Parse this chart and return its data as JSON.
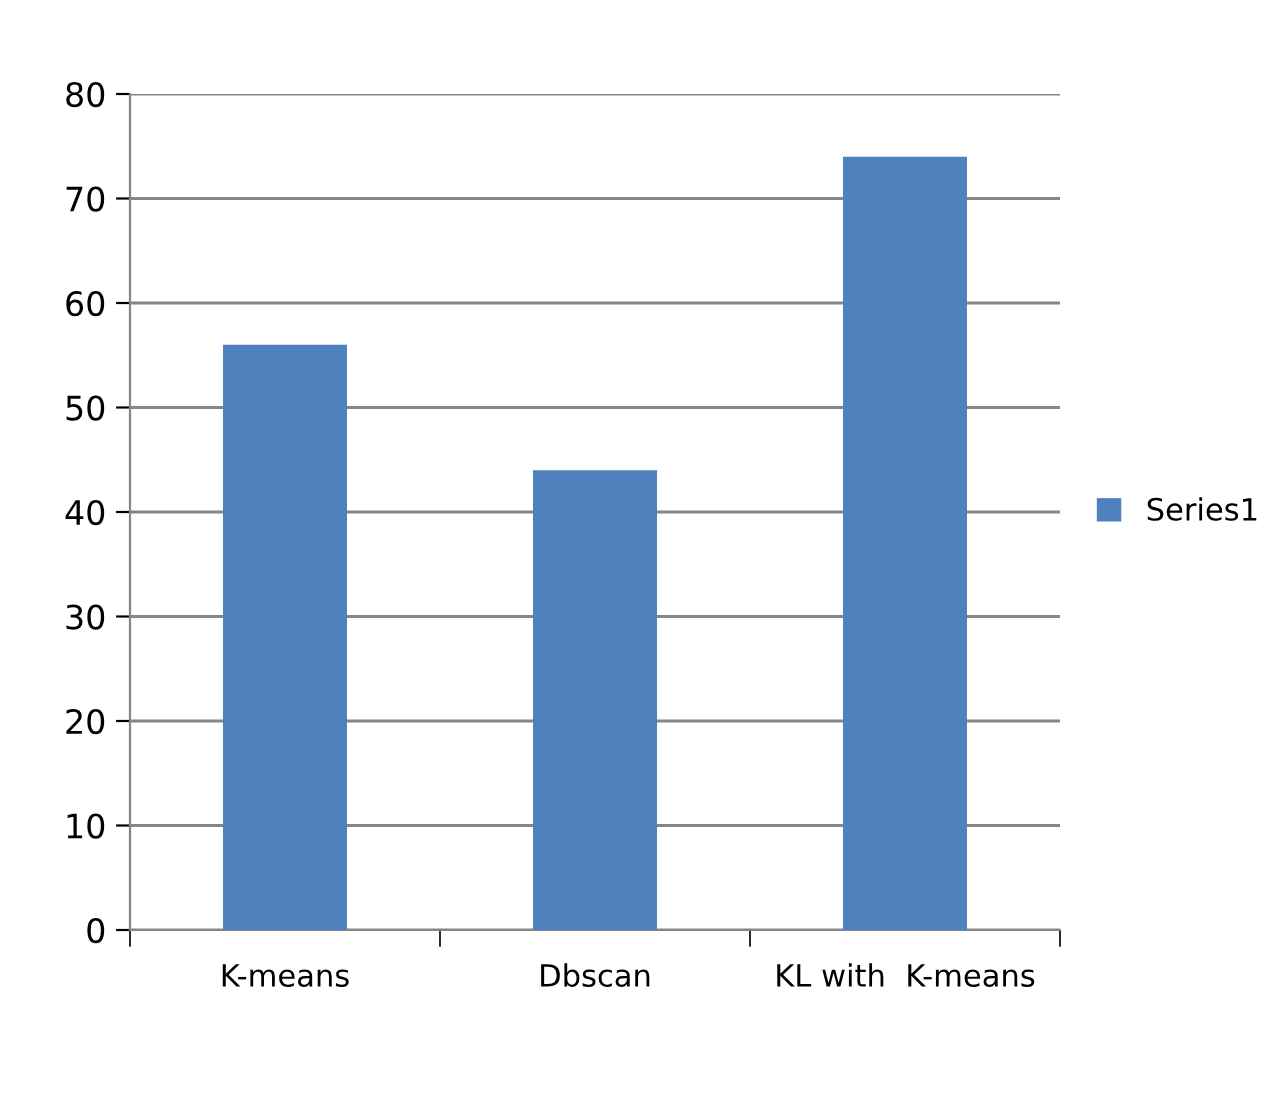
{
  "chart_data": {
    "type": "bar",
    "categories": [
      "K-means",
      "Dbscan",
      "KL with  K-means"
    ],
    "series": [
      {
        "name": "Series1",
        "color": "#4f81bd",
        "values": [
          56,
          44,
          74
        ]
      }
    ],
    "ylim": [
      0,
      80
    ],
    "yticks": [
      0,
      10,
      20,
      30,
      40,
      50,
      60,
      70,
      80
    ],
    "grid": "y",
    "legend": "right"
  }
}
